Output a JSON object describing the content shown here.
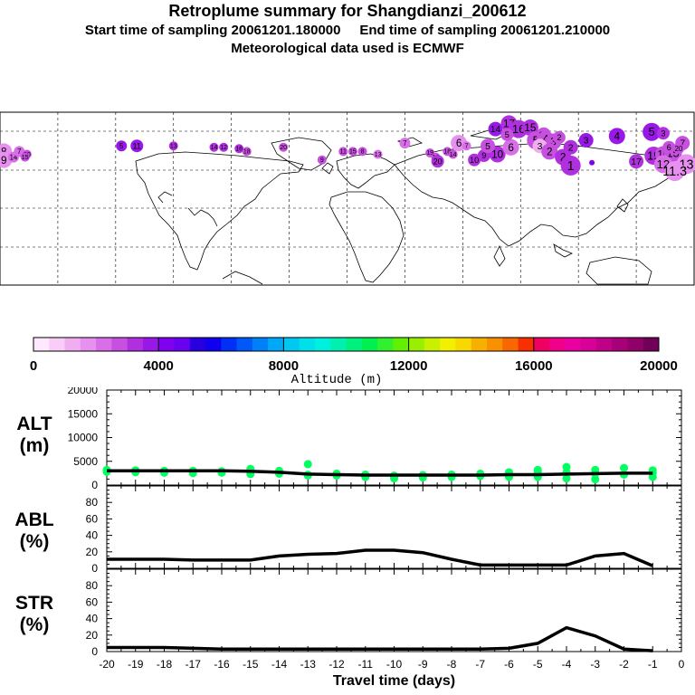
{
  "header": {
    "title": "Retroplume summary for Shangdianzi_200612",
    "sampling": "Start time of sampling 20061201.180000     End time of sampling 20061201.210000",
    "met": "Meteorological data used is ECMWF"
  },
  "colorbar": {
    "label": "Altitude (m)",
    "tick_labels": [
      "0",
      "4000",
      "8000",
      "12000",
      "16000",
      "20000"
    ],
    "range": [
      0,
      20000
    ],
    "colors": [
      "#fde8fd",
      "#f8cdf8",
      "#f0aef0",
      "#e890f0",
      "#d86ee8",
      "#c850e0",
      "#b030e0",
      "#9818e8",
      "#8000f0",
      "#6a00f0",
      "#2800e0",
      "#1000f0",
      "#0030f8",
      "#0058f8",
      "#0080f8",
      "#00a8f8",
      "#00c8f0",
      "#00e0e8",
      "#00f0e0",
      "#00f0b0",
      "#00f080",
      "#00f050",
      "#30f030",
      "#60f000",
      "#98f000",
      "#c8f000",
      "#f0f000",
      "#f8d800",
      "#f8b000",
      "#f89000",
      "#f86800",
      "#f83000",
      "#f00060",
      "#f0008a",
      "#e800a0",
      "#d80098",
      "#c00088",
      "#a80078",
      "#900068",
      "#700058"
    ]
  },
  "map": {
    "markers": [
      {
        "lon": -178,
        "lat": 62,
        "label": "8",
        "size": 9,
        "alt": 1500
      },
      {
        "lon": -178,
        "lat": 56,
        "label": "9",
        "size": 9,
        "alt": 1500
      },
      {
        "lon": -173,
        "lat": 58,
        "label": "14",
        "size": 6,
        "alt": 2000
      },
      {
        "lon": -170,
        "lat": 62,
        "label": "7",
        "size": 6,
        "alt": 2000
      },
      {
        "lon": -166,
        "lat": 60,
        "label": "20",
        "size": 5,
        "alt": 2500
      },
      {
        "lon": -167,
        "lat": 58,
        "label": "15",
        "size": 5,
        "alt": 2500
      },
      {
        "lon": -117,
        "lat": 66,
        "label": "5",
        "size": 6,
        "alt": 3500
      },
      {
        "lon": -109,
        "lat": 66,
        "label": "11",
        "size": 7,
        "alt": 3800
      },
      {
        "lon": -90,
        "lat": 66,
        "label": "13",
        "size": 5,
        "alt": 3000
      },
      {
        "lon": -69,
        "lat": 65,
        "label": "14",
        "size": 5,
        "alt": 3200
      },
      {
        "lon": -64,
        "lat": 65,
        "label": "12",
        "size": 5,
        "alt": 3200
      },
      {
        "lon": -56,
        "lat": 64,
        "label": "16",
        "size": 5,
        "alt": 3000
      },
      {
        "lon": -52,
        "lat": 62,
        "label": "18",
        "size": 5,
        "alt": 2800
      },
      {
        "lon": -33,
        "lat": 65,
        "label": "20",
        "size": 5,
        "alt": 2800
      },
      {
        "lon": -13,
        "lat": 56,
        "label": "9",
        "size": 5,
        "alt": 2800
      },
      {
        "lon": -2,
        "lat": 62,
        "label": "11",
        "size": 5,
        "alt": 2600
      },
      {
        "lon": 3,
        "lat": 62,
        "label": "15",
        "size": 5,
        "alt": 2600
      },
      {
        "lon": 8,
        "lat": 62,
        "label": "8",
        "size": 5,
        "alt": 2600
      },
      {
        "lon": 16,
        "lat": 60,
        "label": "13",
        "size": 5,
        "alt": 2400
      },
      {
        "lon": 30,
        "lat": 68,
        "label": "7",
        "size": 6,
        "alt": 2200
      },
      {
        "lon": 43,
        "lat": 61,
        "label": "19",
        "size": 5,
        "alt": 2800
      },
      {
        "lon": 46,
        "lat": 58,
        "label": "19",
        "size": 5,
        "alt": 2800
      },
      {
        "lon": 47,
        "lat": 55,
        "label": "20",
        "size": 7,
        "alt": 3000
      },
      {
        "lon": 52,
        "lat": 62,
        "label": "18",
        "size": 5,
        "alt": 2800
      },
      {
        "lon": 55,
        "lat": 60,
        "label": "14",
        "size": 5,
        "alt": 2800
      },
      {
        "lon": 58,
        "lat": 68,
        "label": "6",
        "size": 9,
        "alt": 1800
      },
      {
        "lon": 62,
        "lat": 66,
        "label": "7",
        "size": 5,
        "alt": 2000
      },
      {
        "lon": 66,
        "lat": 56,
        "label": "10",
        "size": 7,
        "alt": 3000
      },
      {
        "lon": 71,
        "lat": 59,
        "label": "9",
        "size": 7,
        "alt": 3000
      },
      {
        "lon": 78,
        "lat": 60,
        "label": "10",
        "size": 9,
        "alt": 3000
      },
      {
        "lon": 73,
        "lat": 66,
        "label": "5",
        "size": 8,
        "alt": 2500
      },
      {
        "lon": 85,
        "lat": 65,
        "label": "6",
        "size": 9,
        "alt": 2200
      },
      {
        "lon": 77,
        "lat": 78,
        "label": "14",
        "size": 8,
        "alt": 3500
      },
      {
        "lon": 84,
        "lat": 82,
        "label": "17",
        "size": 9,
        "alt": 3200
      },
      {
        "lon": 89,
        "lat": 78,
        "label": "16",
        "size": 10,
        "alt": 3000
      },
      {
        "lon": 95,
        "lat": 79,
        "label": "15",
        "size": 9,
        "alt": 3000
      },
      {
        "lon": 83,
        "lat": 74,
        "label": "5",
        "size": 7,
        "alt": 2500
      },
      {
        "lon": 98,
        "lat": 70,
        "label": "5",
        "size": 10,
        "alt": 2500
      },
      {
        "lon": 102,
        "lat": 74,
        "label": "18",
        "size": 8,
        "alt": 2500
      },
      {
        "lon": 103,
        "lat": 71,
        "label": "4",
        "size": 9,
        "alt": 2700
      },
      {
        "lon": 107,
        "lat": 69,
        "label": "3",
        "size": 9,
        "alt": 2500
      },
      {
        "lon": 100,
        "lat": 66,
        "label": "3",
        "size": 8,
        "alt": 1200
      },
      {
        "lon": 105,
        "lat": 62,
        "label": "2",
        "size": 9,
        "alt": 2800
      },
      {
        "lon": 110,
        "lat": 72,
        "label": "2",
        "size": 7,
        "alt": 2500
      },
      {
        "lon": 116,
        "lat": 65,
        "label": "2",
        "size": 8,
        "alt": 3000
      },
      {
        "lon": 112,
        "lat": 58,
        "label": "2",
        "size": 9,
        "alt": 3000
      },
      {
        "lon": 116,
        "lat": 52,
        "label": "1",
        "size": 11,
        "alt": 3000
      },
      {
        "lon": 124,
        "lat": 70,
        "label": "3",
        "size": 8,
        "alt": 3500
      },
      {
        "lon": 127,
        "lat": 54,
        "label": "",
        "size": 3,
        "alt": 4200
      },
      {
        "lon": 140,
        "lat": 73,
        "label": "4",
        "size": 9,
        "alt": 3700
      },
      {
        "lon": 158,
        "lat": 76,
        "label": "5",
        "size": 10,
        "alt": 3600
      },
      {
        "lon": 164,
        "lat": 75,
        "label": "3",
        "size": 7,
        "alt": 3400
      },
      {
        "lon": 174,
        "lat": 68,
        "label": "7",
        "size": 8,
        "alt": 2500
      },
      {
        "lon": 150,
        "lat": 55,
        "label": "17",
        "size": 8,
        "alt": 3200
      },
      {
        "lon": 159,
        "lat": 59,
        "label": "19",
        "size": 10,
        "alt": 3200
      },
      {
        "lon": 164,
        "lat": 60,
        "label": "10",
        "size": 9,
        "alt": 2800
      },
      {
        "lon": 169,
        "lat": 61,
        "label": "15",
        "size": 10,
        "alt": 2800
      },
      {
        "lon": 167,
        "lat": 65,
        "label": "6",
        "size": 7,
        "alt": 2800
      },
      {
        "lon": 172,
        "lat": 64,
        "label": "20",
        "size": 6,
        "alt": 2600
      },
      {
        "lon": 164,
        "lat": 53,
        "label": "12",
        "size": 10,
        "alt": 2000
      },
      {
        "lon": 176,
        "lat": 53,
        "label": "13",
        "size": 11,
        "alt": 1500
      },
      {
        "lon": 170,
        "lat": 48,
        "label": "11.3",
        "size": 11,
        "alt": 1500
      }
    ]
  },
  "chart_data": [
    {
      "type": "scatter+line",
      "panel_label": [
        "ALT",
        "(m)"
      ],
      "xlabel": "Travel time (days)",
      "xlim": [
        -20,
        0
      ],
      "ylim": [
        0,
        20000
      ],
      "yticks": [
        0,
        5000,
        10000,
        15000,
        20000
      ],
      "ytick_labels": [
        "0",
        "5000",
        "10000",
        "15000",
        "20000"
      ],
      "line": {
        "x": [
          -20,
          -19,
          -18,
          -17,
          -16,
          -15,
          -14,
          -13,
          -12,
          -11,
          -10,
          -9,
          -8,
          -7,
          -6,
          -5,
          -4,
          -3,
          -2,
          -1
        ],
        "y": [
          3000,
          3000,
          3000,
          3000,
          3000,
          2900,
          2700,
          2300,
          2200,
          2100,
          2100,
          2100,
          2100,
          2100,
          2200,
          2200,
          2300,
          2400,
          2500,
          2500
        ]
      },
      "points": {
        "x": [
          -20,
          -20,
          -19,
          -19,
          -18,
          -18,
          -17,
          -17,
          -16,
          -16,
          -15,
          -15,
          -15,
          -14,
          -14,
          -13,
          -13,
          -13,
          -12,
          -12,
          -11,
          -11,
          -10,
          -10,
          -10,
          -9,
          -9,
          -8,
          -8,
          -7,
          -7,
          -6,
          -6,
          -5,
          -5,
          -5,
          -4,
          -4,
          -4,
          -3,
          -3,
          -3,
          -2,
          -2,
          -1,
          -1,
          -1
        ],
        "y": [
          3200,
          2800,
          3100,
          2700,
          3000,
          2600,
          3000,
          2500,
          2900,
          2600,
          3400,
          2800,
          2300,
          3000,
          2400,
          4400,
          2200,
          2000,
          2400,
          2000,
          2200,
          1700,
          2000,
          1700,
          1400,
          2100,
          1600,
          2200,
          1700,
          2400,
          1900,
          2700,
          1700,
          3200,
          2800,
          1700,
          3800,
          2700,
          1400,
          3200,
          2400,
          1200,
          3600,
          2200,
          3100,
          2600,
          1700
        ],
        "color": "#00ff60"
      }
    },
    {
      "type": "line",
      "panel_label": [
        "ABL",
        "(%)"
      ],
      "xlim": [
        -20,
        0
      ],
      "ylim": [
        0,
        100
      ],
      "yticks": [
        0,
        20,
        40,
        60,
        80
      ],
      "ytick_labels": [
        "0",
        "20",
        "40",
        "60",
        "80"
      ],
      "line": {
        "x": [
          -20,
          -19,
          -18,
          -17,
          -16,
          -15,
          -14,
          -13,
          -12,
          -11,
          -10,
          -9,
          -8,
          -7,
          -6,
          -5,
          -4,
          -3,
          -2,
          -1
        ],
        "y": [
          11,
          11,
          11,
          10,
          10,
          10,
          15,
          17,
          18,
          22,
          22,
          19,
          11,
          4,
          4,
          4,
          4,
          15,
          18,
          3
        ]
      }
    },
    {
      "type": "line",
      "panel_label": [
        "STR",
        "(%)"
      ],
      "xlim": [
        -20,
        0
      ],
      "ylim": [
        0,
        100
      ],
      "yticks": [
        0,
        20,
        40,
        60,
        80
      ],
      "ytick_labels": [
        "0",
        "20",
        "40",
        "60",
        "80"
      ],
      "xticks": [
        -20,
        -19,
        -18,
        -17,
        -16,
        -15,
        -14,
        -13,
        -12,
        -11,
        -10,
        -9,
        -8,
        -7,
        -6,
        -5,
        -4,
        -3,
        -2,
        -1,
        0
      ],
      "xtick_labels": [
        "-20",
        "-19",
        "-18",
        "-17",
        "-16",
        "-15",
        "-14",
        "-13",
        "-12",
        "-11",
        "-10",
        "-9",
        "-8",
        "-7",
        "-6",
        "-5",
        "-4",
        "-3",
        "-2",
        "-1",
        "0"
      ],
      "line": {
        "x": [
          -20,
          -19,
          -18,
          -17,
          -16,
          -15,
          -14,
          -13,
          -12,
          -11,
          -10,
          -9,
          -8,
          -7,
          -6,
          -5,
          -4,
          -3,
          -2,
          -1
        ],
        "y": [
          5,
          5,
          5,
          4,
          3,
          3,
          3,
          3,
          3,
          3,
          3,
          3,
          3,
          3,
          4,
          10,
          29,
          19,
          3,
          1
        ]
      }
    }
  ]
}
